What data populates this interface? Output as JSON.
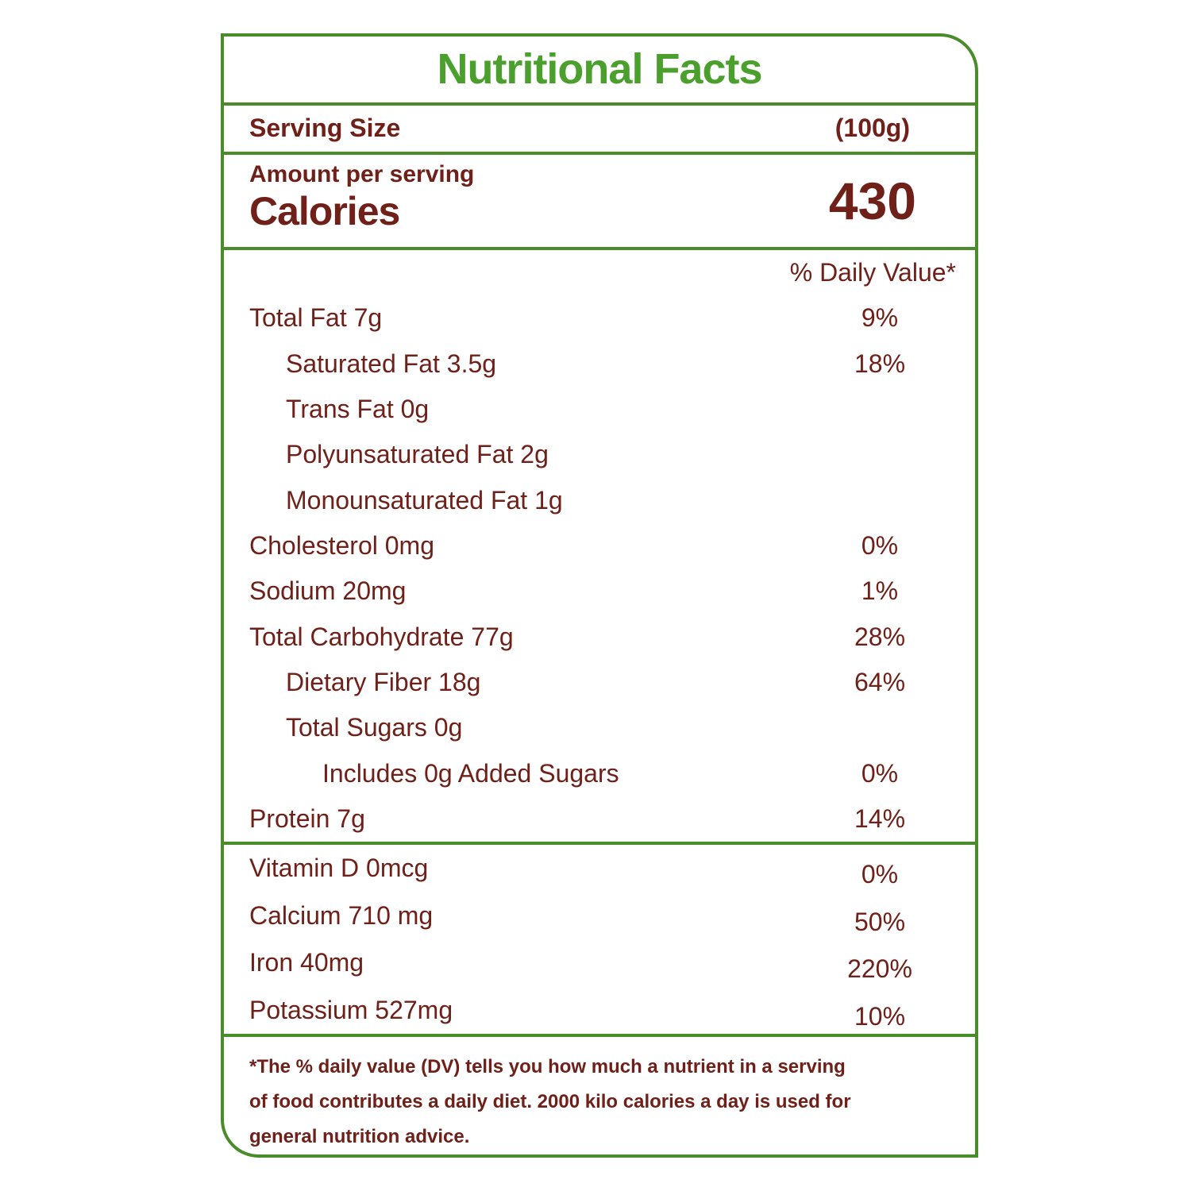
{
  "title": "Nutritional Facts",
  "serving": {
    "label": "Serving Size",
    "value": "(100g)"
  },
  "calories": {
    "amount_label": "Amount per serving",
    "label": "Calories",
    "value": "430"
  },
  "daily_value_header": "% Daily Value*",
  "nutrients": [
    {
      "label": "Total Fat 7g",
      "dv": "9%",
      "indent": 0
    },
    {
      "label": "Saturated Fat 3.5g",
      "dv": "18%",
      "indent": 1
    },
    {
      "label": "Trans Fat 0g",
      "dv": "",
      "indent": 1
    },
    {
      "label": "Polyunsaturated Fat 2g",
      "dv": "",
      "indent": 1
    },
    {
      "label": "Monounsaturated Fat 1g",
      "dv": "",
      "indent": 1
    },
    {
      "label": "Cholesterol 0mg",
      "dv": "0%",
      "indent": 0
    },
    {
      "label": "Sodium 20mg",
      "dv": "1%",
      "indent": 0
    },
    {
      "label": "Total Carbohydrate 77g",
      "dv": "28%",
      "indent": 0
    },
    {
      "label": "Dietary Fiber 18g",
      "dv": "64%",
      "indent": 1
    },
    {
      "label": "Total Sugars 0g",
      "dv": "",
      "indent": 1
    },
    {
      "label": "Includes 0g Added Sugars",
      "dv": "0%",
      "indent": 2
    },
    {
      "label": "Protein 7g",
      "dv": "14%",
      "indent": 0
    }
  ],
  "vitamins": [
    {
      "label": "Vitamin D 0mcg",
      "dv": "0%"
    },
    {
      "label": "Calcium 710 mg",
      "dv": "50%"
    },
    {
      "label": "Iron 40mg",
      "dv": "220%"
    },
    {
      "label": "Potassium 527mg",
      "dv": "10%"
    }
  ],
  "footnote": {
    "lines": [
      "*The % daily value (DV) tells you how much a nutrient in a serving",
      "of food contributes a daily diet. 2000 kilo calories a day is used for",
      "general nutrition advice."
    ]
  },
  "colors": {
    "green": "#4a8c29",
    "title_green": "#4ba02d",
    "text_maroon": "#6e2019",
    "background": "#ffffff"
  }
}
